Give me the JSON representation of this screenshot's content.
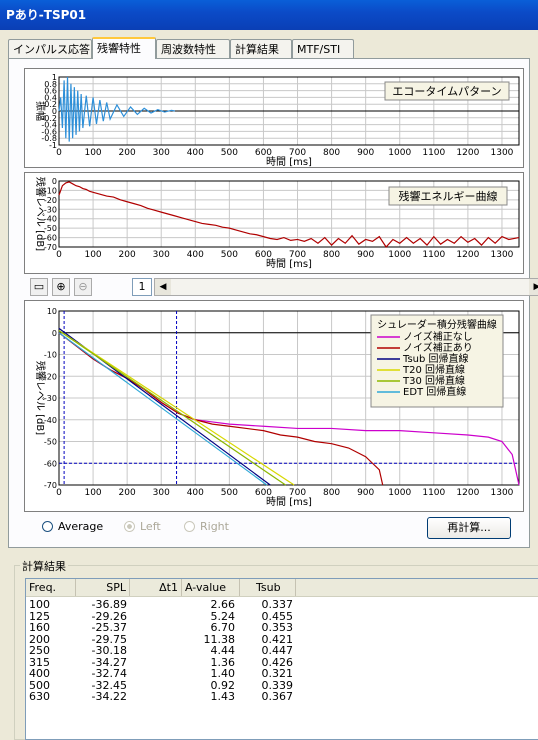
{
  "window": {
    "title": "Pあり-TSP01"
  },
  "tabs": [
    {
      "label": "インパルス応答"
    },
    {
      "label": "残響特性"
    },
    {
      "label": "周波数特性"
    },
    {
      "label": "計算結果"
    },
    {
      "label": "MTF/STI"
    }
  ],
  "active_tab": 1,
  "chart_data": [
    {
      "type": "line",
      "title": "エコータイムパターン",
      "xlabel": "時間 [ms]",
      "ylabel": "振幅",
      "xlim": [
        0,
        1350
      ],
      "ylim": [
        -1,
        1
      ],
      "x_ticks": [
        0,
        100,
        200,
        300,
        400,
        500,
        600,
        700,
        800,
        900,
        1000,
        1100,
        1200,
        1300
      ],
      "y_ticks": [
        1,
        0.8,
        0.6,
        0.4,
        0.2,
        0,
        -0.2,
        -0.4,
        -0.6,
        -0.8,
        -1
      ],
      "y_tick_labels": [
        "1",
        "0.8",
        "0.6",
        "0.4",
        "0.2",
        "0",
        "-0.2",
        "-0.4",
        "-0.6",
        "-0.8",
        "-1"
      ],
      "series": [
        {
          "color": "#2e8fd8",
          "x": [
            0,
            5,
            10,
            15,
            20,
            25,
            30,
            35,
            40,
            45,
            50,
            55,
            60,
            65,
            70,
            80,
            90,
            100,
            110,
            120,
            130,
            140,
            150,
            170,
            190,
            210,
            230,
            250,
            270,
            290,
            310,
            330,
            340
          ],
          "y": [
            0,
            0.4,
            -0.5,
            0.9,
            -0.8,
            1.0,
            -0.9,
            0.8,
            -0.8,
            0.7,
            -0.7,
            0.6,
            -0.6,
            0.5,
            -0.5,
            0.45,
            -0.45,
            0.4,
            -0.38,
            0.32,
            -0.3,
            0.25,
            -0.24,
            0.18,
            -0.16,
            0.12,
            -0.1,
            0.08,
            -0.06,
            0.04,
            -0.03,
            0.02,
            0
          ]
        }
      ]
    },
    {
      "type": "line",
      "title": "残響エネルギー曲線",
      "xlabel": "時間 [ms]",
      "ylabel": "残響レベル [dB]",
      "xlim": [
        0,
        1350
      ],
      "ylim": [
        -70,
        0
      ],
      "x_ticks": [
        0,
        100,
        200,
        300,
        400,
        500,
        600,
        700,
        800,
        900,
        1000,
        1100,
        1200,
        1300
      ],
      "y_ticks": [
        0,
        -10,
        -20,
        -30,
        -40,
        -50,
        -60,
        -70
      ],
      "series": [
        {
          "color": "#b00000",
          "x": [
            0,
            10,
            20,
            30,
            40,
            50,
            60,
            70,
            80,
            90,
            100,
            120,
            140,
            160,
            180,
            200,
            220,
            240,
            260,
            280,
            300,
            320,
            340,
            360,
            380,
            400,
            420,
            440,
            460,
            480,
            500,
            520,
            540,
            560,
            580,
            600,
            620,
            640,
            660,
            680,
            700,
            720,
            740,
            760,
            780,
            800,
            820,
            840,
            860,
            880,
            900,
            920,
            940,
            960,
            980,
            1000,
            1020,
            1040,
            1060,
            1080,
            1100,
            1120,
            1140,
            1160,
            1180,
            1200,
            1220,
            1240,
            1260,
            1280,
            1300,
            1320,
            1350
          ],
          "y": [
            -15,
            -5,
            -2,
            -1,
            -3,
            -5,
            -6,
            -8,
            -9,
            -11,
            -12,
            -14,
            -16,
            -17,
            -20,
            -22,
            -24,
            -26,
            -29,
            -31,
            -33,
            -35,
            -37,
            -39,
            -41,
            -43,
            -45,
            -46,
            -47,
            -49,
            -50,
            -52,
            -54,
            -56,
            -57,
            -59,
            -61,
            -62,
            -60,
            -63,
            -62,
            -64,
            -61,
            -66,
            -60,
            -68,
            -61,
            -66,
            -58,
            -67,
            -62,
            -64,
            -59,
            -70,
            -62,
            -66,
            -60,
            -66,
            -61,
            -68,
            -59,
            -67,
            -62,
            -66,
            -59,
            -65,
            -61,
            -68,
            -60,
            -66,
            -59,
            -62,
            -60
          ]
        }
      ]
    },
    {
      "type": "line",
      "title": "シュレーダー積分残響曲線",
      "xlabel": "時間 [ms]",
      "ylabel": "残響レベル [dB]",
      "xlim": [
        0,
        1350
      ],
      "ylim": [
        -70,
        10
      ],
      "x_ticks": [
        0,
        100,
        200,
        300,
        400,
        500,
        600,
        700,
        800,
        900,
        1000,
        1100,
        1200,
        1300
      ],
      "y_ticks": [
        10,
        0,
        -10,
        -20,
        -30,
        -40,
        -50,
        -60,
        -70
      ],
      "legend": [
        "ノイズ補正なし",
        "ノイズ補正あり",
        "Tsub 回帰直線",
        "T20 回帰直線",
        "T30 回帰直線",
        "EDT 回帰直線"
      ],
      "legend_position": "top-right",
      "hlines": [
        {
          "y": -60,
          "color": "#0000c0"
        }
      ],
      "vlines": [
        {
          "x": 15,
          "color": "#0000c0"
        },
        {
          "x": 345,
          "color": "#0000c0"
        }
      ],
      "series": [
        {
          "name": "ノイズ補正なし",
          "color": "#cc00cc",
          "x": [
            0,
            50,
            100,
            150,
            200,
            250,
            300,
            350,
            400,
            450,
            500,
            600,
            700,
            800,
            900,
            1000,
            1100,
            1200,
            1260,
            1300,
            1330,
            1350
          ],
          "y": [
            0,
            -6,
            -12,
            -17,
            -21,
            -26,
            -32,
            -37,
            -40,
            -41,
            -42,
            -43,
            -44,
            -44,
            -45,
            -45,
            -46,
            -47,
            -48,
            -50,
            -56,
            -70
          ]
        },
        {
          "name": "ノイズ補正あり",
          "color": "#b00000",
          "x": [
            0,
            50,
            100,
            150,
            200,
            250,
            300,
            350,
            400,
            450,
            500,
            550,
            600,
            650,
            700,
            750,
            800,
            850,
            900,
            920,
            940,
            950
          ],
          "y": [
            0,
            -6,
            -12,
            -17,
            -21,
            -26,
            -32,
            -37,
            -40,
            -42,
            -43,
            -44,
            -45,
            -47,
            -48,
            -50,
            -51,
            -53,
            -57,
            -60,
            -63,
            -70
          ]
        },
        {
          "name": "Tsub 回帰直線",
          "color": "#000080",
          "x": [
            0,
            620
          ],
          "y": [
            2,
            -72
          ]
        },
        {
          "name": "T20 回帰直線",
          "color": "#d8d800",
          "x": [
            0,
            690
          ],
          "y": [
            1,
            -72
          ]
        },
        {
          "name": "T30 回帰直線",
          "color": "#8db800",
          "x": [
            0,
            665
          ],
          "y": [
            1,
            -72
          ]
        },
        {
          "name": "EDT 回帰直線",
          "color": "#2ea8d8",
          "x": [
            0,
            610
          ],
          "y": [
            0,
            -72
          ]
        }
      ]
    }
  ],
  "controls": {
    "page_value": "1",
    "radio_average": "Average",
    "radio_left": "Left",
    "radio_right": "Right",
    "recalc_button": "再計算..."
  },
  "results": {
    "group_title": "計算結果",
    "columns": [
      "Freq.",
      "SPL",
      "Δt1",
      "A-value",
      "Tsub"
    ],
    "rows": [
      [
        "100",
        "-36.89",
        "",
        "2.66",
        "0.337"
      ],
      [
        "125",
        "-29.26",
        "",
        "5.24",
        "0.455"
      ],
      [
        "160",
        "-25.37",
        "",
        "6.70",
        "0.353"
      ],
      [
        "200",
        "-29.75",
        "",
        "11.38",
        "0.421"
      ],
      [
        "250",
        "-30.18",
        "",
        "4.44",
        "0.447"
      ],
      [
        "315",
        "-34.27",
        "",
        "1.36",
        "0.426"
      ],
      [
        "400",
        "-32.74",
        "",
        "1.40",
        "0.321"
      ],
      [
        "500",
        "-32.45",
        "",
        "0.92",
        "0.339"
      ],
      [
        "630",
        "-34.22",
        "",
        "1.43",
        "0.367"
      ]
    ]
  }
}
